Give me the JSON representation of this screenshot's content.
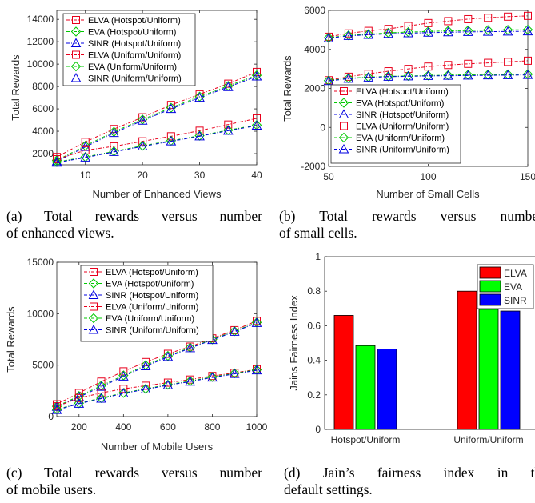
{
  "chart_data": [
    {
      "id": "a",
      "type": "line",
      "xlabel": "Number of Enhanced Views",
      "ylabel": "Total Rewards",
      "xlim": [
        5,
        40
      ],
      "ylim": [
        1000,
        14800
      ],
      "xticks": [
        10,
        20,
        30,
        40
      ],
      "yticks": [
        2000,
        4000,
        6000,
        8000,
        10000,
        12000,
        14000
      ],
      "legend_position": "top-left",
      "x": [
        5,
        10,
        15,
        20,
        25,
        30,
        35,
        40
      ],
      "series": [
        {
          "name": "ELVA (Hotspot/Uniform)",
          "color": "#e8001c",
          "marker": "square",
          "values": [
            1700,
            3050,
            4200,
            5250,
            6350,
            7300,
            8250,
            9300
          ]
        },
        {
          "name": "EVA (Hotspot/Uniform)",
          "color": "#00c800",
          "marker": "diamond",
          "values": [
            1400,
            2700,
            3950,
            5050,
            6100,
            7100,
            8050,
            9000
          ]
        },
        {
          "name": "SINR (Hotspot/Uniform)",
          "color": "#0000e0",
          "marker": "triangle",
          "values": [
            1300,
            2600,
            3850,
            4950,
            6000,
            7000,
            7950,
            8900
          ]
        },
        {
          "name": "ELVA (Uniform/Uniform)",
          "color": "#e8001c",
          "marker": "square",
          "values": [
            1500,
            2300,
            2650,
            3100,
            3550,
            4050,
            4600,
            5150
          ]
        },
        {
          "name": "EVA (Uniform/Uniform)",
          "color": "#00c800",
          "marker": "diamond",
          "values": [
            1250,
            1700,
            2200,
            2700,
            3150,
            3600,
            4100,
            4550
          ]
        },
        {
          "name": "SINR (Uniform/Uniform)",
          "color": "#0000e0",
          "marker": "triangle",
          "values": [
            1200,
            1650,
            2150,
            2650,
            3100,
            3550,
            4050,
            4500
          ]
        }
      ]
    },
    {
      "id": "b",
      "type": "line",
      "xlabel": "Number of Small Cells",
      "ylabel": "Total Rewards",
      "xlim": [
        50,
        150
      ],
      "ylim": [
        -2000,
        6000
      ],
      "xticks": [
        50,
        100,
        150
      ],
      "yticks": [
        -2000,
        0,
        2000,
        4000,
        6000
      ],
      "legend_position": "bottom-left",
      "x": [
        50,
        60,
        70,
        80,
        90,
        100,
        110,
        120,
        130,
        140,
        150
      ],
      "series": [
        {
          "name": "ELVA (Hotspot/Uniform)",
          "color": "#e8001c",
          "marker": "square",
          "values": [
            4650,
            4820,
            4950,
            5050,
            5200,
            5350,
            5450,
            5550,
            5620,
            5680,
            5720
          ]
        },
        {
          "name": "EVA (Hotspot/Uniform)",
          "color": "#00c800",
          "marker": "diamond",
          "values": [
            4600,
            4720,
            4780,
            4850,
            4890,
            4920,
            4950,
            4970,
            4990,
            5000,
            5010
          ]
        },
        {
          "name": "SINR (Hotspot/Uniform)",
          "color": "#0000e0",
          "marker": "triangle",
          "values": [
            4580,
            4690,
            4750,
            4800,
            4830,
            4860,
            4880,
            4900,
            4910,
            4920,
            4930
          ]
        },
        {
          "name": "ELVA (Uniform/Uniform)",
          "color": "#e8001c",
          "marker": "square",
          "values": [
            2420,
            2600,
            2750,
            2880,
            3000,
            3120,
            3200,
            3260,
            3310,
            3360,
            3420
          ]
        },
        {
          "name": "EVA (Uniform/Uniform)",
          "color": "#00c800",
          "marker": "diamond",
          "values": [
            2400,
            2520,
            2580,
            2620,
            2640,
            2660,
            2680,
            2700,
            2710,
            2720,
            2730
          ]
        },
        {
          "name": "SINR (Uniform/Uniform)",
          "color": "#0000e0",
          "marker": "triangle",
          "values": [
            2380,
            2500,
            2560,
            2600,
            2620,
            2640,
            2650,
            2660,
            2670,
            2680,
            2690
          ]
        }
      ]
    },
    {
      "id": "c",
      "type": "line",
      "xlabel": "Number of Mobile Users",
      "ylabel": "Total Rewards",
      "xlim": [
        100,
        1000
      ],
      "ylim": [
        0,
        15000
      ],
      "xticks": [
        200,
        400,
        600,
        800,
        1000
      ],
      "yticks": [
        0,
        5000,
        10000,
        15000
      ],
      "legend_position": "top-left",
      "x": [
        100,
        200,
        300,
        400,
        500,
        600,
        700,
        800,
        900,
        1000
      ],
      "series": [
        {
          "name": "ELVA (Hotspot/Uniform)",
          "color": "#e8001c",
          "marker": "square",
          "values": [
            1200,
            2300,
            3400,
            4400,
            5300,
            6100,
            6800,
            7600,
            8400,
            9300
          ]
        },
        {
          "name": "EVA (Hotspot/Uniform)",
          "color": "#00c800",
          "marker": "diamond",
          "values": [
            1000,
            2000,
            3000,
            4000,
            5000,
            5900,
            6700,
            7500,
            8300,
            9150
          ]
        },
        {
          "name": "SINR (Hotspot/Uniform)",
          "color": "#0000e0",
          "marker": "triangle",
          "values": [
            950,
            1900,
            2900,
            3900,
            4900,
            5800,
            6650,
            7450,
            8250,
            9100
          ]
        },
        {
          "name": "ELVA (Uniform/Uniform)",
          "color": "#e8001c",
          "marker": "square",
          "values": [
            1000,
            1800,
            2300,
            2700,
            3000,
            3300,
            3600,
            3950,
            4250,
            4600
          ]
        },
        {
          "name": "EVA (Uniform/Uniform)",
          "color": "#00c800",
          "marker": "diamond",
          "values": [
            700,
            1300,
            1800,
            2300,
            2700,
            3100,
            3450,
            3850,
            4200,
            4550
          ]
        },
        {
          "name": "SINR (Uniform/Uniform)",
          "color": "#0000e0",
          "marker": "triangle",
          "values": [
            650,
            1250,
            1750,
            2250,
            2650,
            3050,
            3400,
            3800,
            4150,
            4500
          ]
        }
      ]
    },
    {
      "id": "d",
      "type": "bar",
      "ylabel": "Jains Fairness Index",
      "xlabel": "",
      "ylim": [
        0,
        1
      ],
      "yticks": [
        0,
        0.2,
        0.4,
        0.6,
        0.8,
        1
      ],
      "ytick_labels": [
        "0",
        "0.2",
        "0.4",
        "0.6",
        "0.8",
        "1"
      ],
      "legend_position": "top-right",
      "categories": [
        "Hotspot/Uniform",
        "Uniform/Uniform"
      ],
      "series": [
        {
          "name": "ELVA",
          "color": "#ff0000",
          "values": [
            0.66,
            0.8
          ]
        },
        {
          "name": "EVA",
          "color": "#00ff00",
          "values": [
            0.485,
            0.695
          ]
        },
        {
          "name": "SINR",
          "color": "#0000ff",
          "values": [
            0.465,
            0.685
          ]
        }
      ]
    }
  ],
  "captions": {
    "a": [
      "(a) Total rewards versus number",
      "of enhanced views."
    ],
    "b": [
      "(b) Total rewards versus number",
      "of small cells."
    ],
    "c": [
      "(c) Total rewards versus number",
      "of mobile users."
    ],
    "d": [
      "(d) Jain’s fairness index in the",
      "default settings."
    ]
  }
}
